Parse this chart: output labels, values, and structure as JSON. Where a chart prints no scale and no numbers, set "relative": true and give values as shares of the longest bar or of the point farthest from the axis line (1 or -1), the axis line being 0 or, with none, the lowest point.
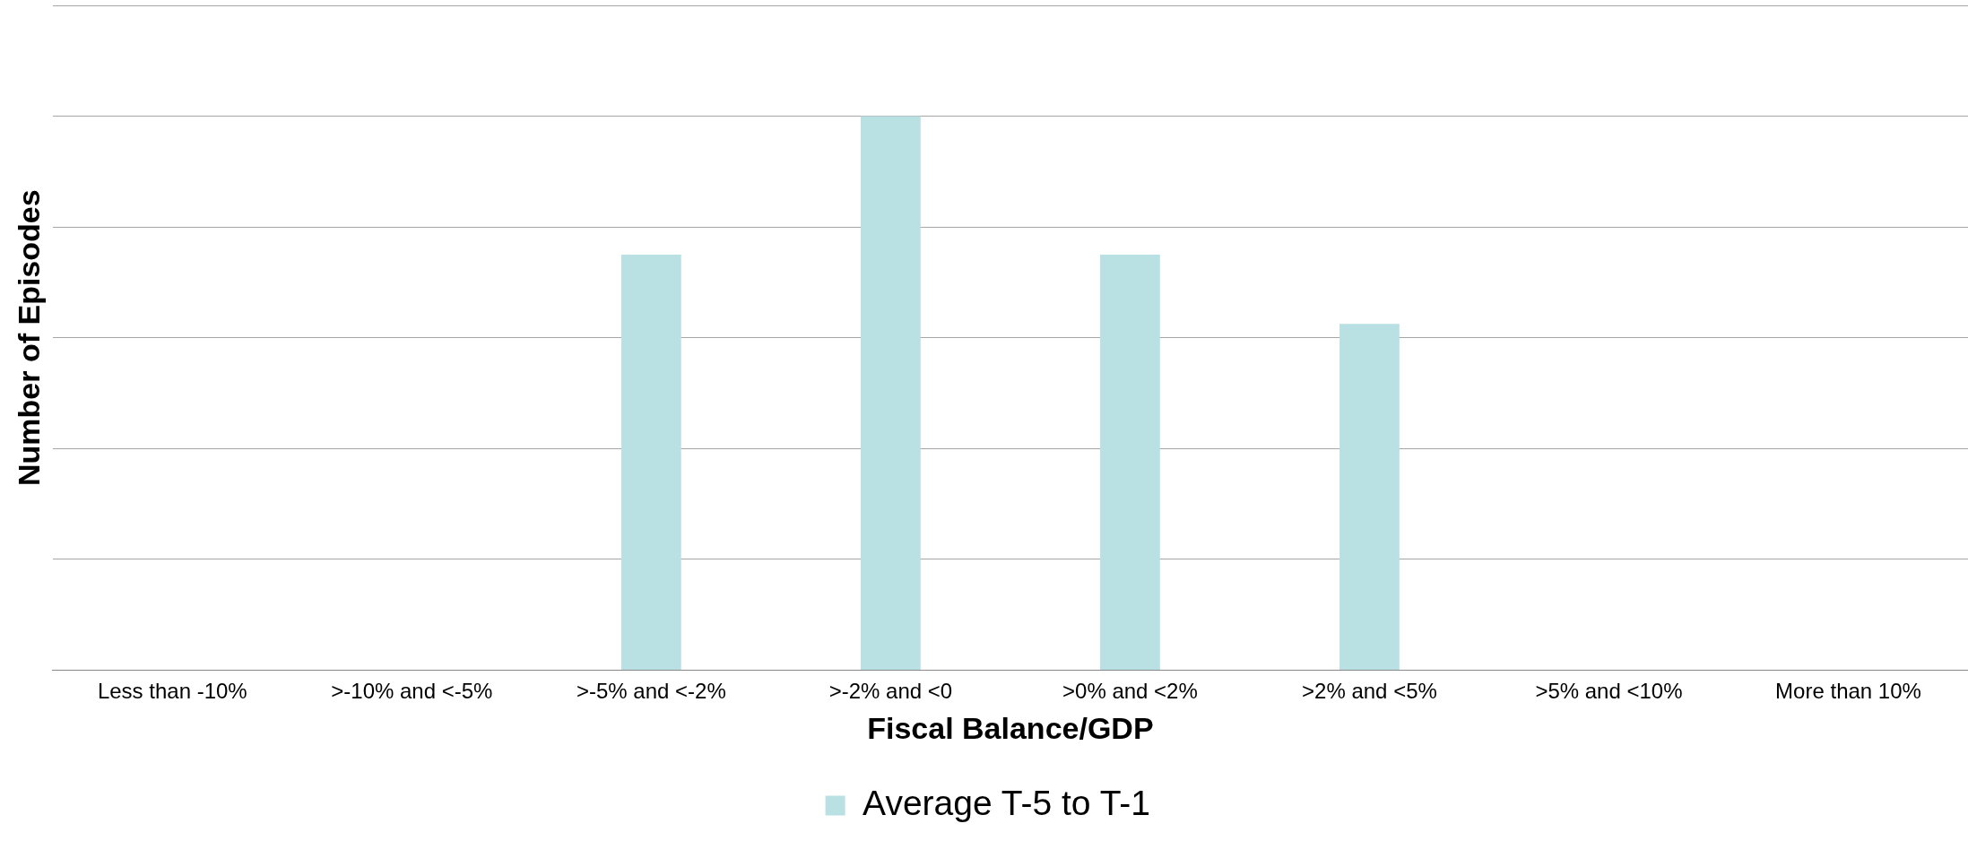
{
  "chart_data": {
    "type": "bar",
    "xlabel": "Fiscal Balance/GDP",
    "ylabel": "Number of Episodes",
    "categories": [
      "Less than -10%",
      ">-10% and <-5%",
      ">-5% and <-2%",
      ">-2% and <0",
      ">0% and <2%",
      ">2% and <5%",
      ">5% and <10%",
      "More than 10%"
    ],
    "series": [
      {
        "name": "Average T-5 to T-1",
        "color": "#b9e0e3",
        "values": [
          0,
          0,
          0.75,
          1,
          0.75,
          0.625,
          0,
          0
        ]
      }
    ],
    "relative": true,
    "grid": "y",
    "legend": "bottom"
  }
}
